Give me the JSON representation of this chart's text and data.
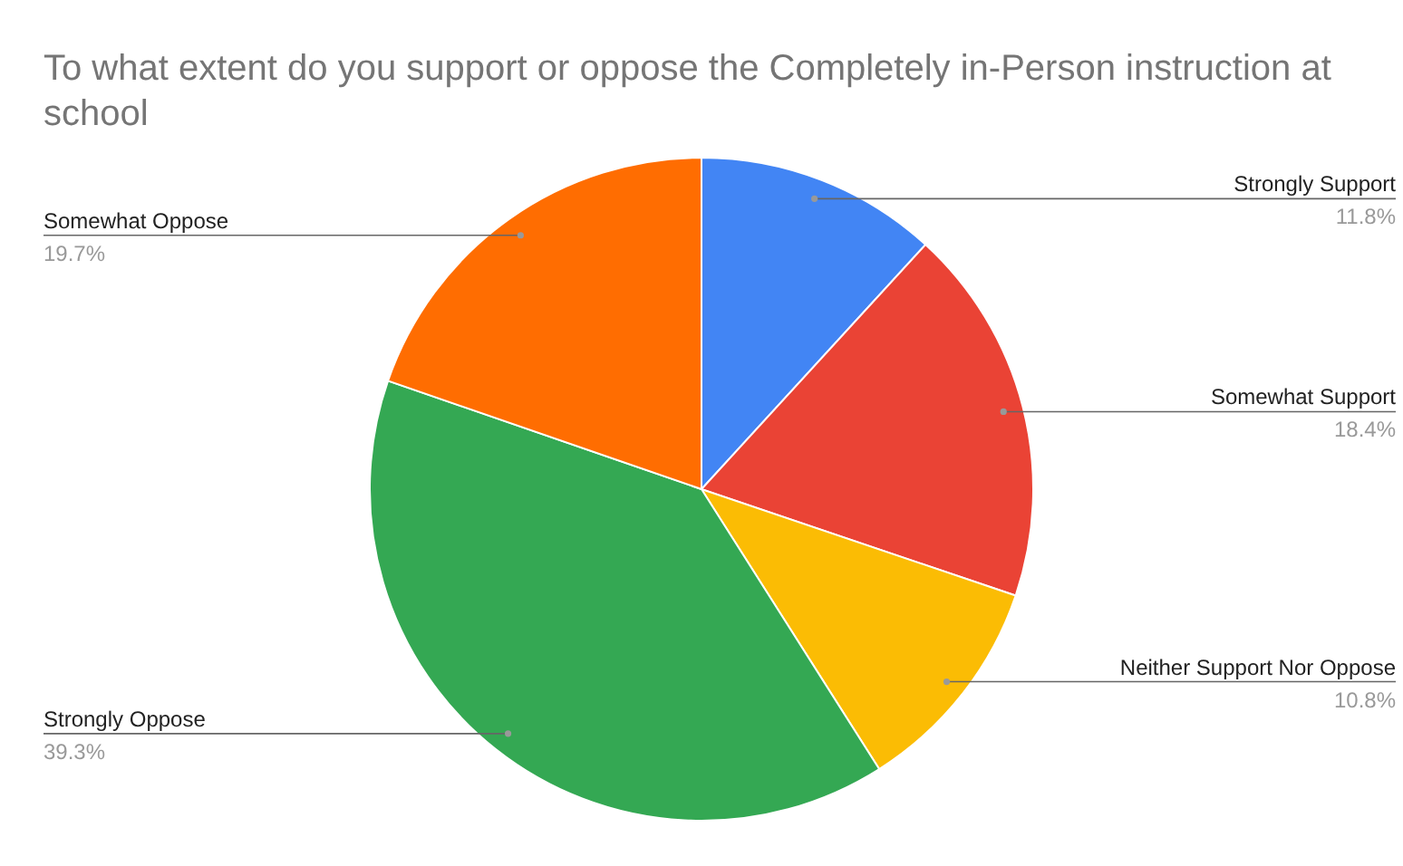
{
  "chart_data": {
    "type": "pie",
    "title": "To what extent do you support or oppose the Completely in-Person instruction at school",
    "categories": [
      "Strongly Support",
      "Somewhat Support",
      "Neither Support Nor Oppose",
      "Strongly Oppose",
      "Somewhat Oppose"
    ],
    "values": [
      11.8,
      18.4,
      10.8,
      39.3,
      19.7
    ],
    "value_labels": [
      "11.8%",
      "18.4%",
      "10.8%",
      "39.3%",
      "19.7%"
    ],
    "colors": [
      "#4285f4",
      "#ea4335",
      "#fbbc04",
      "#34a853",
      "#ff6d01"
    ],
    "legend": false
  }
}
